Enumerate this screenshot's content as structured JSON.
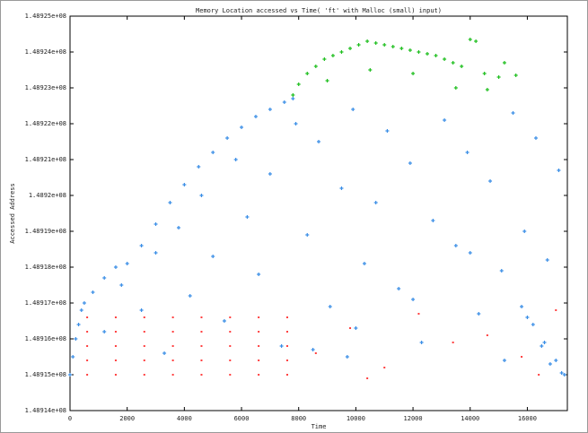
{
  "chart_data": {
    "type": "scatter",
    "title": "Memory Location accessed vs Time( 'ft' with Malloc (small) input)",
    "x_label": "Time",
    "y_label": "Accessed Address",
    "xlim": [
      0,
      17400
    ],
    "xticks": [
      0,
      2000,
      4000,
      6000,
      8000,
      10000,
      12000,
      14000,
      16000
    ],
    "ylim": [
      148914000,
      148925000
    ],
    "yticks": [
      {
        "value": 148914000,
        "label": "1.48914e+08"
      },
      {
        "value": 148915000,
        "label": "1.48915e+08"
      },
      {
        "value": 148916000,
        "label": "1.48916e+08"
      },
      {
        "value": 148917000,
        "label": "1.48917e+08"
      },
      {
        "value": 148918000,
        "label": "1.48918e+08"
      },
      {
        "value": 148919000,
        "label": "1.48919e+08"
      },
      {
        "value": 148920000,
        "label": "1.4892e+08"
      },
      {
        "value": 148921000,
        "label": "1.48921e+08"
      },
      {
        "value": 148922000,
        "label": "1.48922e+08"
      },
      {
        "value": 148923000,
        "label": "1.48923e+08"
      },
      {
        "value": 148924000,
        "label": "1.48924e+08"
      },
      {
        "value": 148925000,
        "label": "1.48925e+08"
      }
    ],
    "series": [
      {
        "color": "#ff4040",
        "marker": "dot",
        "x": [
          600,
          1600,
          2600,
          3600,
          4600,
          5600,
          6600,
          7600,
          600,
          1600,
          2600,
          3600,
          4600,
          5600,
          6600,
          7600,
          600,
          1600,
          2600,
          3600,
          4600,
          5600,
          6600,
          7600,
          600,
          1600,
          2600,
          3600,
          4600,
          5600,
          6600,
          7600,
          600,
          1600,
          2600,
          3600,
          4600,
          5600,
          6600,
          7600,
          8600,
          9800,
          11000,
          12200,
          13400,
          14600,
          15800,
          17000,
          10400,
          16400
        ],
        "values": [
          148915000,
          148915000,
          148915000,
          148915000,
          148915000,
          148915000,
          148915000,
          148915000,
          148915400,
          148915400,
          148915400,
          148915400,
          148915400,
          148915400,
          148915400,
          148915400,
          148915800,
          148915800,
          148915800,
          148915800,
          148915800,
          148915800,
          148915800,
          148915800,
          148916200,
          148916200,
          148916200,
          148916200,
          148916200,
          148916200,
          148916200,
          148916200,
          148916600,
          148916600,
          148916600,
          148916600,
          148916600,
          148916600,
          148916600,
          148916600,
          148915600,
          148916300,
          148915200,
          148916700,
          148915900,
          148916100,
          148915500,
          148916800,
          148914900,
          148915000
        ]
      },
      {
        "color": "#3a8ee6",
        "marker": "plus",
        "x": [
          0,
          100,
          200,
          300,
          400,
          500,
          800,
          1200,
          1600,
          2000,
          2500,
          3000,
          3500,
          4000,
          4500,
          5000,
          5500,
          6000,
          6500,
          7000,
          7500,
          7800,
          1200,
          1800,
          2500,
          3000,
          3300,
          3800,
          4200,
          4600,
          5000,
          5400,
          5800,
          6200,
          6600,
          7000,
          7400,
          7900,
          8300,
          8700,
          9100,
          9500,
          9900,
          10300,
          10700,
          11100,
          11500,
          11900,
          12300,
          12700,
          13100,
          13500,
          13900,
          14300,
          14700,
          15100,
          15500,
          15900,
          16300,
          16700,
          17100,
          10000,
          12000,
          14000,
          16000,
          8500,
          9700,
          15200,
          16800,
          17200,
          16500,
          15800,
          16200,
          16600,
          17000,
          17300
        ],
        "values": [
          148915000,
          148915500,
          148916000,
          148916400,
          148916800,
          148917000,
          148917300,
          148917700,
          148918000,
          148918100,
          148918600,
          148919200,
          148919800,
          148920300,
          148920800,
          148921200,
          148921600,
          148921900,
          148922200,
          148922400,
          148922600,
          148922700,
          148916200,
          148917500,
          148916800,
          148918400,
          148915600,
          148919100,
          148917200,
          148920000,
          148918300,
          148916500,
          148921000,
          148919400,
          148917800,
          148920600,
          148915800,
          148922000,
          148918900,
          148921500,
          148916900,
          148920200,
          148922400,
          148918100,
          148919800,
          148921800,
          148917400,
          148920900,
          148915900,
          148919300,
          148922100,
          148918600,
          148921200,
          148916700,
          148920400,
          148917900,
          148922300,
          148919000,
          148921600,
          148918200,
          148920700,
          148916300,
          148917100,
          148918400,
          148916600,
          148915700,
          148915500,
          148915400,
          148915300,
          148915050,
          148915800,
          148916900,
          148916400,
          148915900,
          148915400,
          148915000
        ]
      },
      {
        "color": "#1fbf1f",
        "marker": "plus",
        "x": [
          7800,
          8000,
          8300,
          8600,
          8900,
          9200,
          9500,
          9800,
          10100,
          10400,
          10700,
          11000,
          11300,
          11600,
          11900,
          12200,
          12500,
          12800,
          13100,
          13400,
          13700,
          14000,
          14200,
          14500,
          15000,
          15600,
          9000,
          10500,
          12000,
          13500,
          14600,
          15200
        ],
        "values": [
          148922800,
          148923100,
          148923400,
          148923600,
          148923800,
          148923900,
          148924000,
          148924100,
          148924200,
          148924300,
          148924250,
          148924200,
          148924150,
          148924100,
          148924050,
          148924000,
          148923950,
          148923900,
          148923800,
          148923700,
          148923600,
          148924350,
          148924300,
          148923400,
          148923300,
          148923350,
          148923200,
          148923500,
          148923400,
          148923000,
          148922950,
          148923700
        ]
      }
    ]
  }
}
